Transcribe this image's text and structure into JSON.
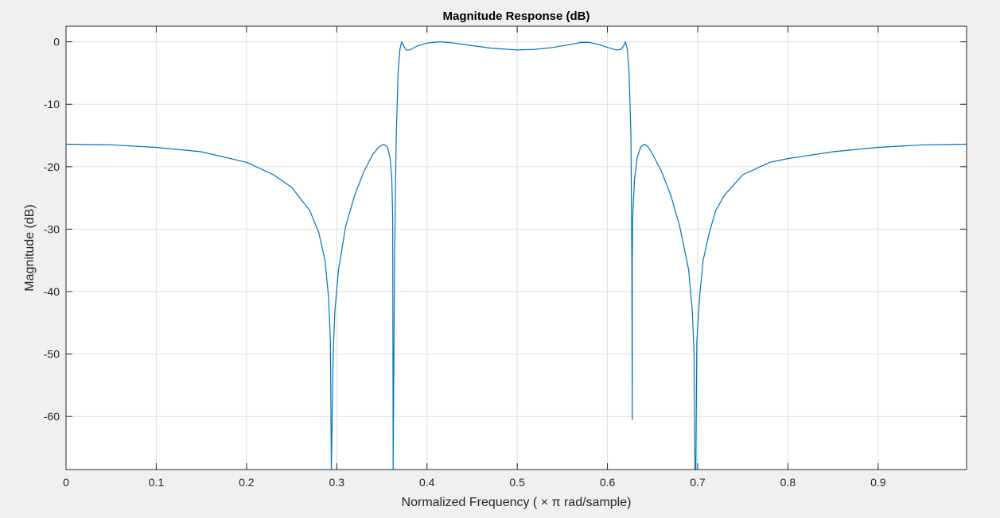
{
  "chart_data": {
    "type": "line",
    "title": "Magnitude Response (dB)",
    "xlabel": "Normalized  Frequency  ( × π  rad/sample)",
    "ylabel": "Magnitude (dB)",
    "xlim": [
      0,
      0.998
    ],
    "ylim": [
      -68.5,
      2.5
    ],
    "xticks": [
      0,
      0.1,
      0.2,
      0.3,
      0.4,
      0.5,
      0.6,
      0.7,
      0.8,
      0.9
    ],
    "xtick_labels": [
      "0",
      "0.1",
      "0.2",
      "0.3",
      "0.4",
      "0.5",
      "0.6",
      "0.7",
      "0.8",
      "0.9"
    ],
    "yticks": [
      0,
      -10,
      -20,
      -30,
      -40,
      -50,
      -60
    ],
    "ytick_labels": [
      "0",
      "-10",
      "-20",
      "-30",
      "-40",
      "-50",
      "-60"
    ],
    "grid": true,
    "series_color": "#0072bd",
    "series": [
      {
        "x": [
          0,
          0.05,
          0.1,
          0.15,
          0.2,
          0.23,
          0.25,
          0.27,
          0.28,
          0.287,
          0.291,
          0.293,
          0.294,
          0.294,
          0.296,
          0.298,
          0.302,
          0.31,
          0.32,
          0.33,
          0.34,
          0.347,
          0.352,
          0.356,
          0.359,
          0.361,
          0.362,
          0.3625,
          0.3625,
          0.364,
          0.366,
          0.368,
          0.37,
          0.372,
          0.374,
          0.377,
          0.381,
          0.385,
          0.39,
          0.4,
          0.415,
          0.43,
          0.45,
          0.47,
          0.5,
          0.52,
          0.54,
          0.56,
          0.57,
          0.58,
          0.59,
          0.6,
          0.61,
          0.615,
          0.618,
          0.62,
          0.622,
          0.624,
          0.626,
          0.627,
          0.6275,
          0.6275,
          0.628,
          0.63,
          0.633,
          0.637,
          0.641,
          0.645,
          0.65,
          0.66,
          0.67,
          0.68,
          0.69,
          0.694,
          0.696,
          0.697,
          0.698,
          0.699,
          0.702,
          0.706,
          0.713,
          0.72,
          0.73,
          0.75,
          0.78,
          0.8,
          0.85,
          0.9,
          0.95,
          0.998
        ],
        "y": [
          -16.4,
          -16.5,
          -16.9,
          -17.6,
          -19.3,
          -21.3,
          -23.3,
          -27,
          -30.5,
          -35,
          -41,
          -48,
          -68.5,
          -68.5,
          -50,
          -43,
          -36.5,
          -29.5,
          -24.5,
          -20.8,
          -18,
          -16.8,
          -16.4,
          -16.8,
          -18.5,
          -22,
          -28,
          -68.5,
          -68.5,
          -35,
          -15,
          -5,
          -1.2,
          0,
          -0.6,
          -1.3,
          -1.3,
          -1,
          -0.6,
          -0.2,
          0,
          -0.2,
          -0.6,
          -1,
          -1.3,
          -1.2,
          -0.9,
          -0.4,
          -0.1,
          -0.1,
          -0.4,
          -0.9,
          -1.3,
          -1.2,
          -0.6,
          0,
          -1.2,
          -5,
          -15,
          -35,
          -60.5,
          -35,
          -28,
          -22,
          -18.5,
          -16.8,
          -16.4,
          -16.8,
          -18,
          -20.8,
          -24.5,
          -29.5,
          -36.5,
          -43,
          -50,
          -68.5,
          -68.5,
          -48,
          -41,
          -35,
          -30.5,
          -27,
          -24.5,
          -21.3,
          -19.3,
          -18.7,
          -17.6,
          -16.9,
          -16.5,
          -16.4
        ]
      }
    ]
  }
}
